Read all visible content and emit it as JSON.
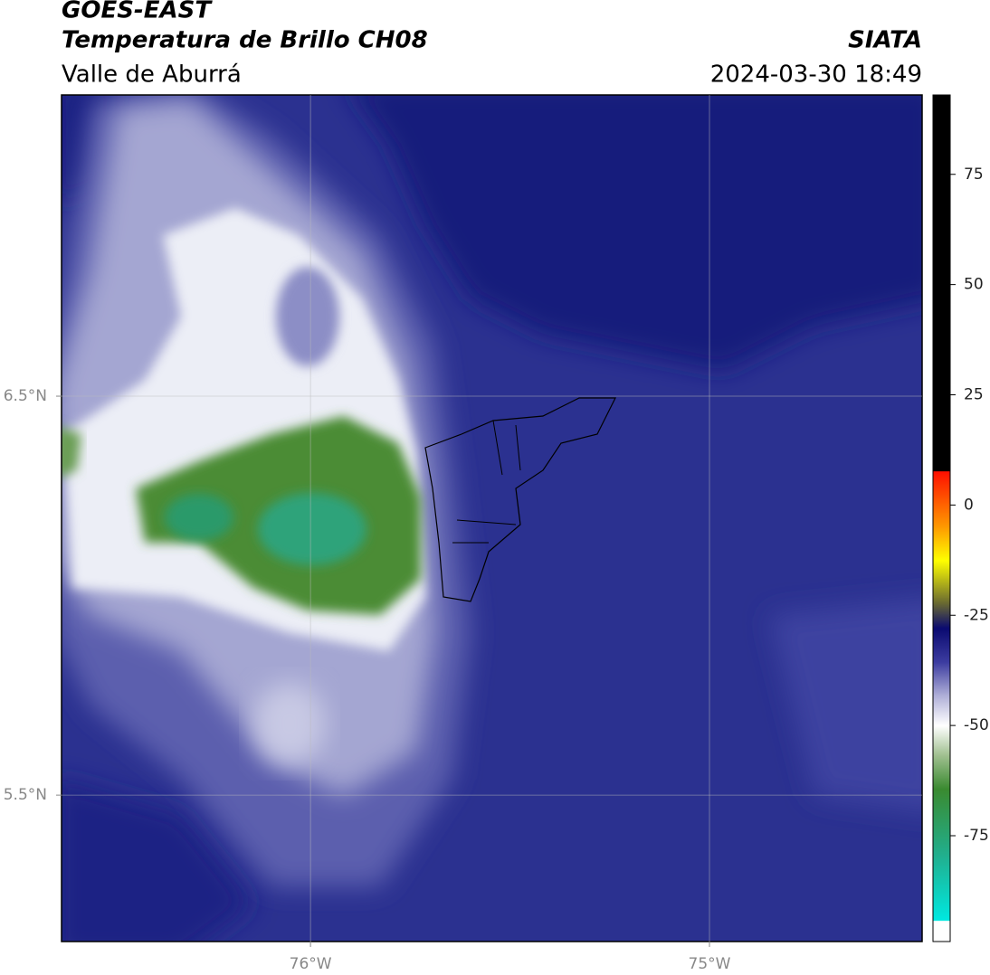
{
  "header": {
    "title": "GOES-EAST",
    "subtitle": "Temperatura de Brillo CH08",
    "region": "Valle de Aburrá",
    "source": "SIATA",
    "datetime": "2024-03-30 18:49"
  },
  "map": {
    "lonlim": [
      -76.624,
      -74.467
    ],
    "latlim": [
      5.133,
      7.255
    ],
    "lonticks": [
      {
        "value": -76,
        "label": "76°W"
      },
      {
        "value": -75,
        "label": "75°W"
      }
    ],
    "latticks": [
      {
        "value": 6.5,
        "label": "6.5°N"
      },
      {
        "value": 5.5,
        "label": "5.5°N"
      }
    ],
    "grid": true
  },
  "colorbar": {
    "lim": [
      -99,
      93
    ],
    "ticks": [
      75,
      50,
      25,
      0,
      -25,
      -50,
      -75
    ]
  }
}
